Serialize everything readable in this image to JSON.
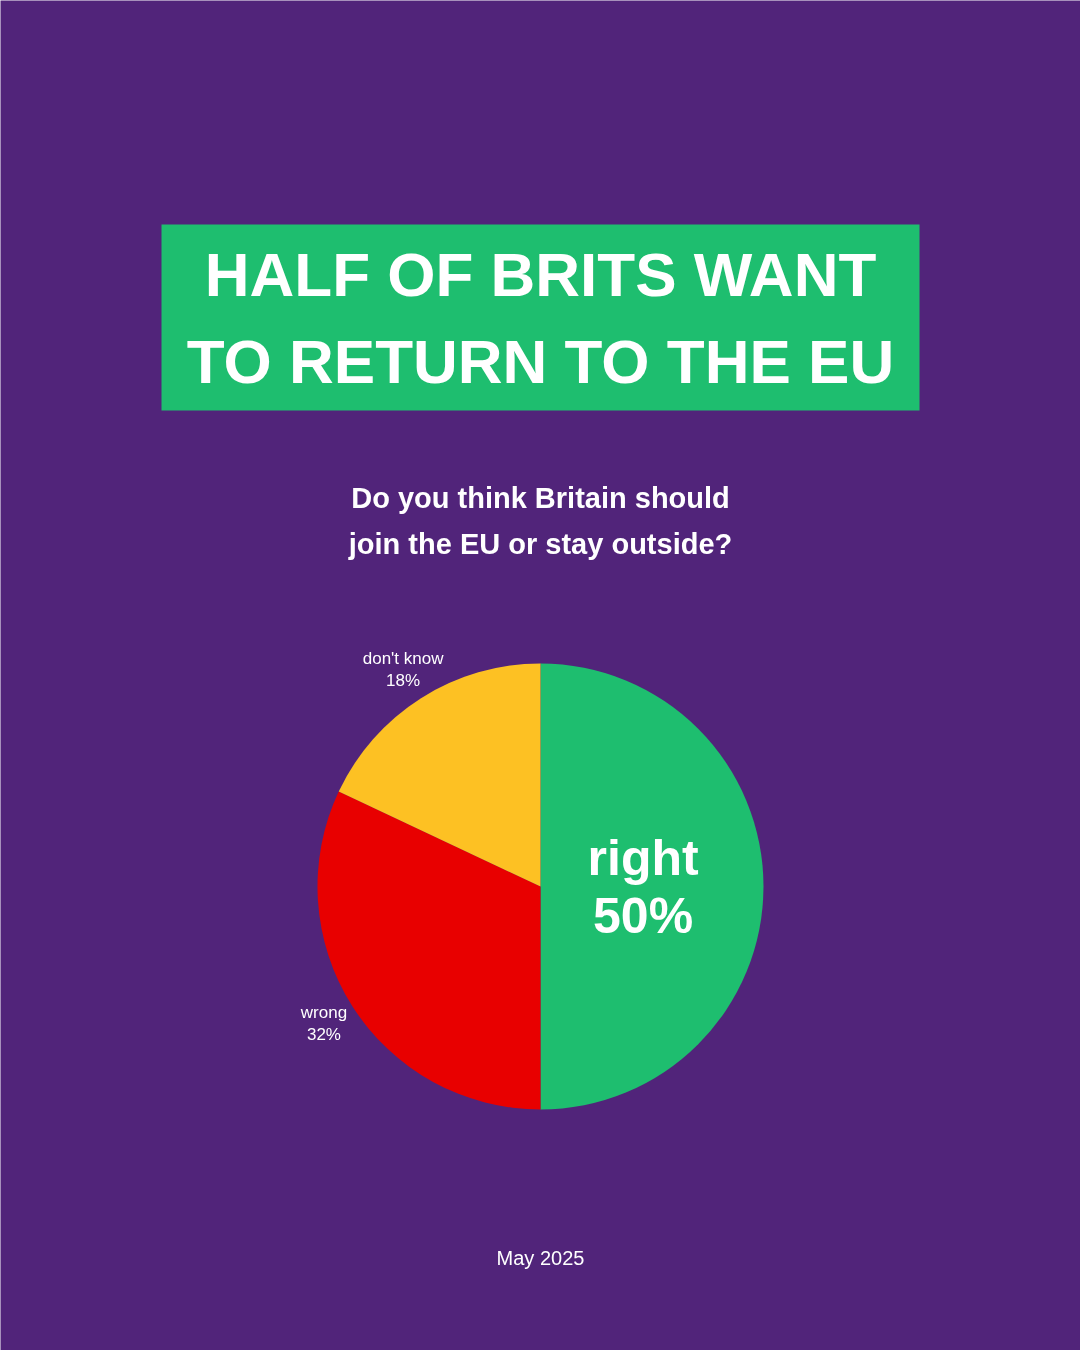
{
  "chart_data": {
    "type": "pie",
    "title": "HALF OF BRITS WANT TO RETURN TO THE EU",
    "subtitle": "Do you think Britain should join the EU or stay outside?",
    "categories": [
      "right",
      "wrong",
      "don't know"
    ],
    "values": [
      50,
      32,
      18
    ],
    "colors": [
      "#1ebe6f",
      "#e80000",
      "#fdc123"
    ],
    "value_labels": [
      "50%",
      "32%",
      "18%"
    ],
    "annotations": [
      "May 2025"
    ]
  }
}
